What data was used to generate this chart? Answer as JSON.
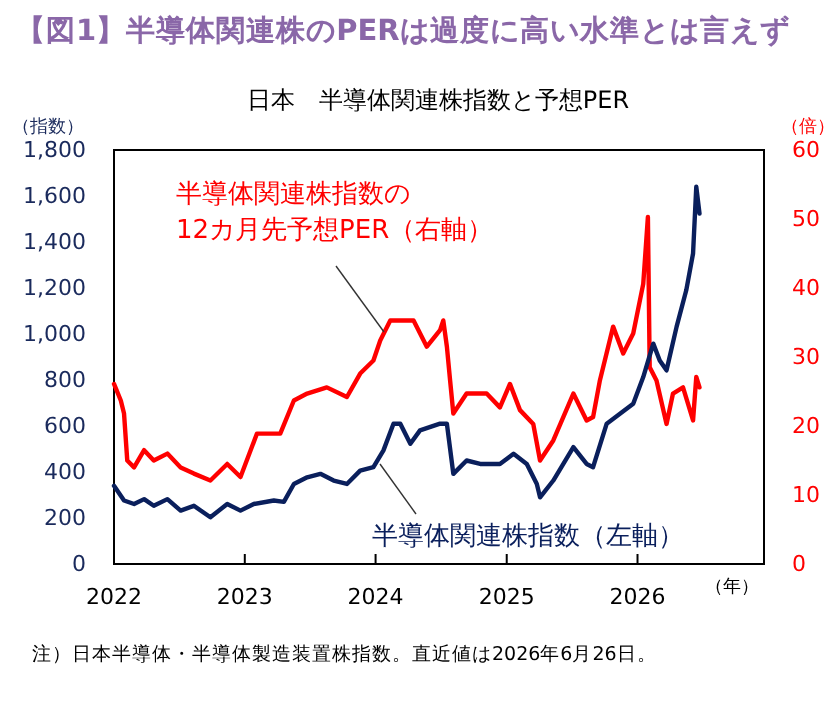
{
  "chart_data": {
    "type": "line",
    "title": "【図1】半導体関連株のPERは過度に高い水準とは言えず",
    "subtitle": "日本　半導体関連株指数と予想PER",
    "ylabel": "（指数）",
    "y2label": "（倍）",
    "xlabel": "（年）",
    "annotations": [
      "注）日本半導体・半導体製造装置株指数。直近値は2026年6月26日。"
    ],
    "xlim": [
      "2022-01-01",
      "2026-12-20"
    ],
    "xticks": [
      "2022",
      "2023",
      "2024",
      "2025",
      "2026"
    ],
    "ylim": [
      0,
      1800
    ],
    "yticks": [
      0,
      200,
      400,
      600,
      800,
      {
        "value": 1000,
        "label": "1,000"
      },
      {
        "value": 1200,
        "label": "1,200"
      },
      {
        "value": 1400,
        "label": "1,400"
      },
      {
        "value": 1600,
        "label": "1,600"
      },
      {
        "value": 1800,
        "label": "1,800"
      }
    ],
    "y2lim": [
      0,
      60
    ],
    "y2ticks": [
      0,
      10,
      20,
      30,
      40,
      50,
      60
    ],
    "grid": false,
    "series": [
      {
        "name": "半導体関連株指数の\n12カ月先予想PER（右軸）",
        "color": "#ff0000",
        "axis": "y2",
        "x": [
          "2022-01-01",
          "2022-01-20",
          "2022-01-29",
          "2022-02-07",
          "2022-02-26",
          "2022-03-26",
          "2022-04-22",
          "2022-05-30",
          "2022-07-06",
          "2022-08-12",
          "2022-09-27",
          "2022-11-13",
          "2022-12-20",
          "2023-02-04",
          "2023-04-10",
          "2023-05-18",
          "2023-06-24",
          "2023-08-18",
          "2023-10-13",
          "2023-11-19",
          "2023-12-26",
          "2024-01-14",
          "2024-02-11",
          "2024-03-10",
          "2024-04-16",
          "2024-05-23",
          "2024-06-29",
          "2024-07-08",
          "2024-07-18",
          "2024-07-27",
          "2024-08-05",
          "2024-09-11",
          "2024-11-06",
          "2024-12-13",
          "2025-01-10",
          "2025-02-07",
          "2025-03-16",
          "2025-04-04",
          "2025-05-11",
          "2025-07-06",
          "2025-08-12",
          "2025-08-30",
          "2025-09-18",
          "2025-10-25",
          "2025-11-22",
          "2025-12-20",
          "2026-01-17",
          "2026-01-30",
          "2026-02-04",
          "2026-02-23",
          "2026-03-23",
          "2026-04-10",
          "2026-05-08",
          "2026-06-05",
          "2026-06-14",
          "2026-06-23"
        ],
        "values": [
          26.1,
          23.7,
          21.8,
          15.0,
          14.0,
          16.5,
          15.0,
          16.0,
          14.0,
          13.1,
          12.1,
          14.5,
          12.6,
          18.9,
          18.9,
          23.7,
          24.7,
          25.6,
          24.2,
          27.6,
          29.5,
          32.4,
          35.3,
          35.3,
          35.3,
          31.5,
          33.9,
          35.3,
          31.5,
          26.6,
          21.8,
          24.7,
          24.7,
          22.7,
          26.1,
          22.3,
          20.3,
          15.0,
          17.9,
          24.7,
          20.8,
          21.3,
          26.6,
          34.4,
          30.5,
          33.4,
          40.6,
          50.3,
          28.5,
          26.6,
          20.3,
          24.7,
          25.6,
          20.8,
          27.1,
          25.6
        ]
      },
      {
        "name": "半導体関連株指数（左軸）",
        "color": "#0a1f5c",
        "x": [
          "2022-01-01",
          "2022-01-29",
          "2022-02-26",
          "2022-03-26",
          "2022-04-22",
          "2022-05-30",
          "2022-07-06",
          "2022-08-12",
          "2022-09-27",
          "2022-11-13",
          "2022-12-20",
          "2023-01-26",
          "2023-03-23",
          "2023-04-20",
          "2023-05-18",
          "2023-06-24",
          "2023-07-31",
          "2023-09-06",
          "2023-10-13",
          "2023-11-19",
          "2023-12-26",
          "2024-01-23",
          "2024-02-20",
          "2024-03-10",
          "2024-04-07",
          "2024-05-04",
          "2024-06-29",
          "2024-07-18",
          "2024-08-05",
          "2024-09-11",
          "2024-10-19",
          "2024-12-13",
          "2025-01-20",
          "2025-02-26",
          "2025-03-26",
          "2025-04-04",
          "2025-05-11",
          "2025-07-06",
          "2025-08-12",
          "2025-08-30",
          "2025-10-07",
          "2025-11-13",
          "2025-12-20",
          "2026-01-17",
          "2026-02-14",
          "2026-03-04",
          "2026-03-23",
          "2026-04-20",
          "2026-05-17",
          "2026-06-05",
          "2026-06-14",
          "2026-06-23"
        ],
        "values": [
          340,
          276,
          261,
          282,
          253,
          282,
          232,
          253,
          203,
          261,
          232,
          261,
          276,
          270,
          348,
          377,
          392,
          363,
          348,
          406,
          421,
          494,
          610,
          610,
          523,
          581,
          610,
          610,
          392,
          450,
          435,
          435,
          479,
          435,
          348,
          290,
          363,
          508,
          435,
          421,
          610,
          653,
          697,
          813,
          958,
          885,
          842,
          1031,
          1190,
          1350,
          1640,
          1524
        ]
      }
    ]
  }
}
